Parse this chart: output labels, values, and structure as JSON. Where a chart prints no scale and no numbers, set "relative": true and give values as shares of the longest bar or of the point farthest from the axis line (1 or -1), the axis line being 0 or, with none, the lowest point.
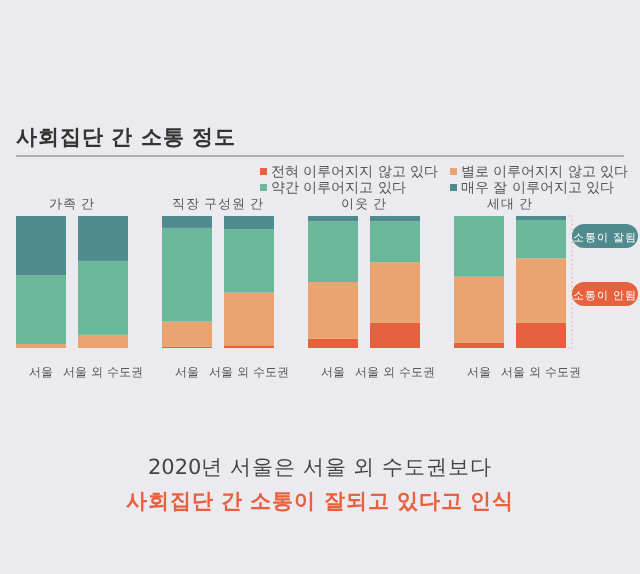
{
  "chart_data": {
    "type": "bar",
    "stacked": true,
    "relative": true,
    "title": "사회집단 간 소통 정도",
    "categories": [
      "서울",
      "서울 외 수도권",
      "서울",
      "서울 외 수도권",
      "서울",
      "서울 외 수도권",
      "서울",
      "서울 외 수도권"
    ],
    "series": [
      {
        "name": "전혀 이루어지지 않고 있다",
        "color": "#e8613f",
        "values": [
          0,
          0,
          0.01,
          0.02,
          0.07,
          0.19,
          0.04,
          0.19
        ]
      },
      {
        "name": "별로 이루어지지 않고 있다",
        "color": "#eba46f",
        "values": [
          0.03,
          0.1,
          0.19,
          0.4,
          0.43,
          0.46,
          0.5,
          0.49
        ]
      },
      {
        "name": "약간 이루어지고 있다",
        "color": "#6ab79b",
        "values": [
          0.52,
          0.56,
          0.71,
          0.48,
          0.46,
          0.31,
          0.46,
          0.29
        ]
      },
      {
        "name": "매우 잘 이루어지고 있다",
        "color": "#4e8a8e",
        "values": [
          0.45,
          0.34,
          0.09,
          0.1,
          0.04,
          0.04,
          0,
          0.03
        ]
      }
    ],
    "annotations": [
      "가족 간",
      "직장 구성원 간",
      "이웃 간",
      "세대 간",
      "소통이 잘됨",
      "소통이 안됨",
      "2020년 서울은 서울 외 수도권보다",
      "사회집단 간 소통이 잘되고 있다고 인식"
    ],
    "legend": "top right"
  }
}
